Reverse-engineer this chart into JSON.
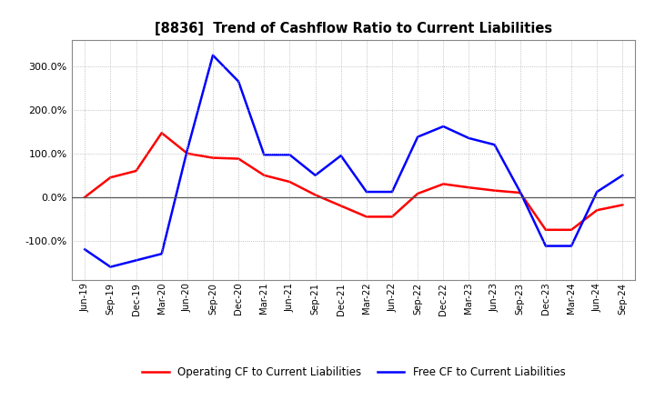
{
  "title": "[8836]  Trend of Cashflow Ratio to Current Liabilities",
  "x_labels": [
    "Jun-19",
    "Sep-19",
    "Dec-19",
    "Mar-20",
    "Jun-20",
    "Sep-20",
    "Dec-20",
    "Mar-21",
    "Jun-21",
    "Sep-21",
    "Dec-21",
    "Mar-22",
    "Jun-22",
    "Sep-22",
    "Dec-22",
    "Mar-23",
    "Jun-23",
    "Sep-23",
    "Dec-23",
    "Mar-24",
    "Jun-24",
    "Sep-24"
  ],
  "operating_cf": [
    0.0,
    45.0,
    60.0,
    147.0,
    100.0,
    90.0,
    88.0,
    50.0,
    35.0,
    5.0,
    -20.0,
    -45.0,
    -45.0,
    8.0,
    30.0,
    22.0,
    15.0,
    10.0,
    -75.0,
    -75.0,
    -30.0,
    -18.0
  ],
  "free_cf": [
    -120.0,
    -160.0,
    -145.0,
    -130.0,
    108.0,
    325.0,
    265.0,
    97.0,
    97.0,
    50.0,
    95.0,
    12.0,
    12.0,
    138.0,
    162.0,
    135.0,
    120.0,
    12.0,
    -112.0,
    -112.0,
    12.0,
    50.0
  ],
  "ylim": [
    -190,
    360
  ],
  "yticks": [
    -100.0,
    0.0,
    100.0,
    200.0,
    300.0
  ],
  "operating_color": "#ff0000",
  "free_color": "#0000ff",
  "bg_color": "#ffffff",
  "plot_bg_color": "#ffffff",
  "grid_color": "#b0b0b0",
  "zero_line_color": "#555555",
  "legend_op": "Operating CF to Current Liabilities",
  "legend_free": "Free CF to Current Liabilities"
}
